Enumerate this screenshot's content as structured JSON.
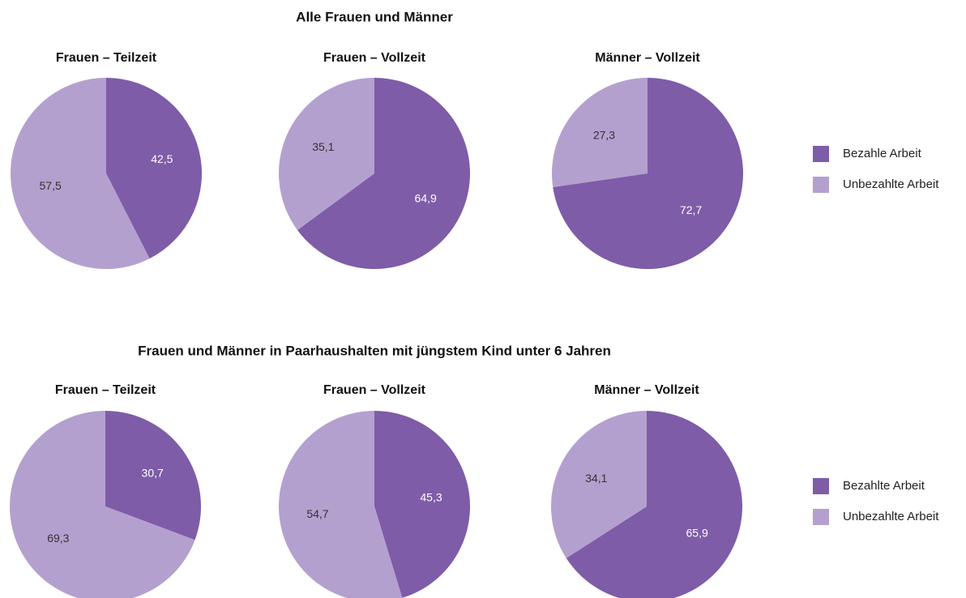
{
  "sections": [
    {
      "title": "Alle Frauen und Männer"
    },
    {
      "title": "Frauen und Männer in Paarhaushalten mit jüngstem Kind unter 6 Jahren"
    }
  ],
  "chart_data": [
    {
      "type": "pie",
      "title": "Frauen – Teilzeit",
      "categories": [
        "Bezahle Arbeit",
        "Unbezahlte Arbeit"
      ],
      "colors": [
        "#7e5ca8",
        "#b4a0ce"
      ],
      "values": [
        42.5,
        57.5
      ],
      "value_labels": [
        "42,5",
        "57,5"
      ]
    },
    {
      "type": "pie",
      "title": "Frauen – Vollzeit",
      "categories": [
        "Bezahle Arbeit",
        "Unbezahlte Arbeit"
      ],
      "colors": [
        "#7e5ca8",
        "#b4a0ce"
      ],
      "values": [
        64.9,
        35.1
      ],
      "value_labels": [
        "64,9",
        "35,1"
      ]
    },
    {
      "type": "pie",
      "title": "Männer – Vollzeit",
      "categories": [
        "Bezahle Arbeit",
        "Unbezahlte Arbeit"
      ],
      "colors": [
        "#7e5ca8",
        "#b4a0ce"
      ],
      "values": [
        72.7,
        27.3
      ],
      "value_labels": [
        "72,7",
        "27,3"
      ]
    },
    {
      "type": "pie",
      "title": "Frauen – Teilzeit",
      "categories": [
        "Bezahlte Arbeit",
        "Unbezahlte Arbeit"
      ],
      "colors": [
        "#7e5ca8",
        "#b4a0ce"
      ],
      "values": [
        30.7,
        69.3
      ],
      "value_labels": [
        "30,7",
        "69,3"
      ]
    },
    {
      "type": "pie",
      "title": "Frauen – Vollzeit",
      "categories": [
        "Bezahlte Arbeit",
        "Unbezahlte Arbeit"
      ],
      "colors": [
        "#7e5ca8",
        "#b4a0ce"
      ],
      "values": [
        45.3,
        54.7
      ],
      "value_labels": [
        "45,3",
        "54,7"
      ]
    },
    {
      "type": "pie",
      "title": "Männer – Vollzeit",
      "categories": [
        "Bezahlte Arbeit",
        "Unbezahlte Arbeit"
      ],
      "colors": [
        "#7e5ca8",
        "#b4a0ce"
      ],
      "values": [
        65.9,
        34.1
      ],
      "value_labels": [
        "65,9",
        "34,1"
      ]
    }
  ]
}
